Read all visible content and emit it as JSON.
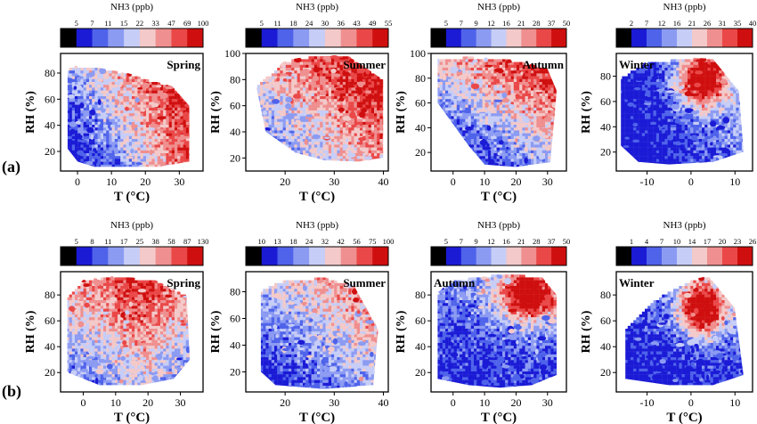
{
  "figure": {
    "row_labels": [
      "(a)",
      "(b)"
    ]
  },
  "chart_data": [
    {
      "type": "heatmap",
      "row": "(a)",
      "season": "Spring",
      "title": "NH3 (ppb)",
      "xlabel": "T (°C)",
      "ylabel": "RH (%)",
      "xlim": [
        -5,
        37
      ],
      "ylim": [
        5,
        95
      ],
      "xticks": [
        0,
        10,
        20,
        30
      ],
      "yticks": [
        20,
        40,
        60,
        80
      ],
      "colorbar_ticks": [
        "5",
        "7",
        "11",
        "15",
        "22",
        "33",
        "47",
        "69",
        "100"
      ],
      "hull": [
        [
          -3,
          86
        ],
        [
          5,
          85
        ],
        [
          15,
          80
        ],
        [
          28,
          70
        ],
        [
          33,
          55
        ],
        [
          33,
          12
        ],
        [
          24,
          8
        ],
        [
          15,
          8
        ],
        [
          5,
          8
        ],
        [
          0,
          12
        ],
        [
          -3,
          22
        ]
      ],
      "hot_region": "high T, moderate-to-high RH",
      "cold_region": "low T / low RH"
    },
    {
      "type": "heatmap",
      "row": "(a)",
      "season": "Summer",
      "title": "NH3 (ppb)",
      "xlabel": "T (°C)",
      "ylabel": "RH (%)",
      "xlim": [
        12,
        41
      ],
      "ylim": [
        10,
        100
      ],
      "xticks": [
        20,
        30,
        40
      ],
      "yticks": [
        20,
        40,
        60,
        80,
        100
      ],
      "colorbar_ticks": [
        "5",
        "11",
        "18",
        "24",
        "30",
        "36",
        "43",
        "49",
        "55"
      ],
      "hull": [
        [
          14,
          76
        ],
        [
          20,
          95
        ],
        [
          28,
          100
        ],
        [
          33,
          98
        ],
        [
          40,
          80
        ],
        [
          40,
          20
        ],
        [
          35,
          17
        ],
        [
          28,
          18
        ],
        [
          22,
          24
        ],
        [
          16,
          40
        ]
      ],
      "hot_region": "high T, high RH",
      "cold_region": "low T"
    },
    {
      "type": "heatmap",
      "row": "(a)",
      "season": "Autumn",
      "title": "NH3 (ppb)",
      "xlabel": "T (°C)",
      "ylabel": "RH (%)",
      "xlim": [
        -7,
        36
      ],
      "ylim": [
        5,
        100
      ],
      "xticks": [
        0,
        10,
        20,
        30
      ],
      "yticks": [
        20,
        40,
        60,
        80,
        100
      ],
      "colorbar_ticks": [
        "5",
        "7",
        "9",
        "12",
        "16",
        "21",
        "28",
        "37",
        "50"
      ],
      "hull": [
        [
          -5,
          96
        ],
        [
          5,
          98
        ],
        [
          20,
          95
        ],
        [
          30,
          88
        ],
        [
          33,
          70
        ],
        [
          31,
          12
        ],
        [
          20,
          8
        ],
        [
          10,
          10
        ],
        [
          5,
          25
        ],
        [
          -5,
          60
        ]
      ],
      "hot_region": "high T, high RH",
      "cold_region": "mid T, low RH"
    },
    {
      "type": "heatmap",
      "row": "(a)",
      "season": "Winter",
      "title": "NH3 (ppb)",
      "xlabel": "",
      "ylabel": "RH (%)",
      "xlim": [
        -17,
        14
      ],
      "ylim": [
        5,
        98
      ],
      "xticks": [
        -10,
        0,
        10
      ],
      "yticks": [
        20,
        40,
        60,
        80
      ],
      "colorbar_ticks": [
        "2",
        "7",
        "12",
        "16",
        "21",
        "26",
        "31",
        "35",
        "40"
      ],
      "hull": [
        [
          -16,
          80
        ],
        [
          -10,
          92
        ],
        [
          0,
          95
        ],
        [
          5,
          94
        ],
        [
          11,
          68
        ],
        [
          12,
          20
        ],
        [
          5,
          12
        ],
        [
          -5,
          10
        ],
        [
          -12,
          12
        ],
        [
          -16,
          25
        ]
      ],
      "hot_region": "0–8 °C, RH 60–95%",
      "cold_region": "T below -5 °C"
    },
    {
      "type": "heatmap",
      "row": "(b)",
      "season": "Spring",
      "title": "NH3 (ppb)",
      "xlabel": "T (°C)",
      "ylabel": "RH (%)",
      "xlim": [
        -7,
        37
      ],
      "ylim": [
        5,
        98
      ],
      "xticks": [
        0,
        10,
        20,
        30
      ],
      "yticks": [
        20,
        40,
        60,
        80
      ],
      "colorbar_ticks": [
        "5",
        "8",
        "11",
        "17",
        "25",
        "38",
        "58",
        "87",
        "130"
      ],
      "hull": [
        [
          -5,
          80
        ],
        [
          0,
          92
        ],
        [
          10,
          95
        ],
        [
          22,
          92
        ],
        [
          32,
          80
        ],
        [
          33,
          30
        ],
        [
          28,
          15
        ],
        [
          18,
          10
        ],
        [
          5,
          10
        ],
        [
          -5,
          20
        ]
      ],
      "hot_region": "10–30 °C, RH 40–90%",
      "cold_region": "low RH"
    },
    {
      "type": "heatmap",
      "row": "(b)",
      "season": "Summer",
      "title": "NH3 (ppb)",
      "xlabel": "T (°C)",
      "ylabel": "RH (%)",
      "xlim": [
        12,
        41
      ],
      "ylim": [
        5,
        95
      ],
      "xticks": [
        20,
        30,
        40
      ],
      "yticks": [
        20,
        40,
        60,
        80
      ],
      "colorbar_ticks": [
        "10",
        "13",
        "18",
        "24",
        "32",
        "42",
        "56",
        "75",
        "100"
      ],
      "hull": [
        [
          15,
          82
        ],
        [
          20,
          90
        ],
        [
          28,
          91
        ],
        [
          34,
          85
        ],
        [
          39,
          52
        ],
        [
          38,
          10
        ],
        [
          28,
          7
        ],
        [
          18,
          10
        ],
        [
          15,
          20
        ]
      ],
      "hot_region": "high T, high RH",
      "cold_region": "low T"
    },
    {
      "type": "heatmap",
      "row": "(b)",
      "season": "Autumn",
      "title": "NH3 (ppb)",
      "xlabel": "T (°C)",
      "ylabel": "RH (%)",
      "xlim": [
        -7,
        36
      ],
      "ylim": [
        5,
        98
      ],
      "xticks": [
        0,
        10,
        20,
        30
      ],
      "yticks": [
        20,
        40,
        60,
        80
      ],
      "colorbar_ticks": [
        "5",
        "7",
        "9",
        "12",
        "16",
        "21",
        "28",
        "37",
        "50"
      ],
      "hull": [
        [
          -5,
          82
        ],
        [
          0,
          92
        ],
        [
          15,
          97
        ],
        [
          28,
          95
        ],
        [
          33,
          80
        ],
        [
          33,
          18
        ],
        [
          25,
          10
        ],
        [
          15,
          8
        ],
        [
          5,
          10
        ],
        [
          -5,
          15
        ]
      ],
      "hot_region": "15–30 °C, RH 60–95%",
      "cold_region": "low RH"
    },
    {
      "type": "heatmap",
      "row": "(b)",
      "season": "Winter",
      "title": "NH3 (ppb)",
      "xlabel": "T (°C)",
      "ylabel": "RH (%)",
      "xlim": [
        -17,
        14
      ],
      "ylim": [
        5,
        98
      ],
      "xticks": [
        -10,
        0,
        10
      ],
      "yticks": [
        20,
        40,
        60,
        80
      ],
      "colorbar_ticks": [
        "1",
        "4",
        "7",
        "10",
        "14",
        "17",
        "20",
        "23",
        "26"
      ],
      "hull": [
        [
          -15,
          55
        ],
        [
          -8,
          78
        ],
        [
          0,
          92
        ],
        [
          4,
          95
        ],
        [
          10,
          70
        ],
        [
          12,
          18
        ],
        [
          5,
          10
        ],
        [
          -5,
          10
        ],
        [
          -15,
          15
        ]
      ],
      "hot_region": "-2–8 °C, RH 50–95%",
      "cold_region": "low RH, low T"
    }
  ],
  "colors": {
    "colorbar": [
      "#000000",
      "#1b1bd6",
      "#4f63ea",
      "#8c9bf2",
      "#c6cdf7",
      "#f3c9c9",
      "#ef8f8f",
      "#ea4848",
      "#cf0f0f"
    ],
    "frame": "#000000",
    "text": "#000000"
  }
}
